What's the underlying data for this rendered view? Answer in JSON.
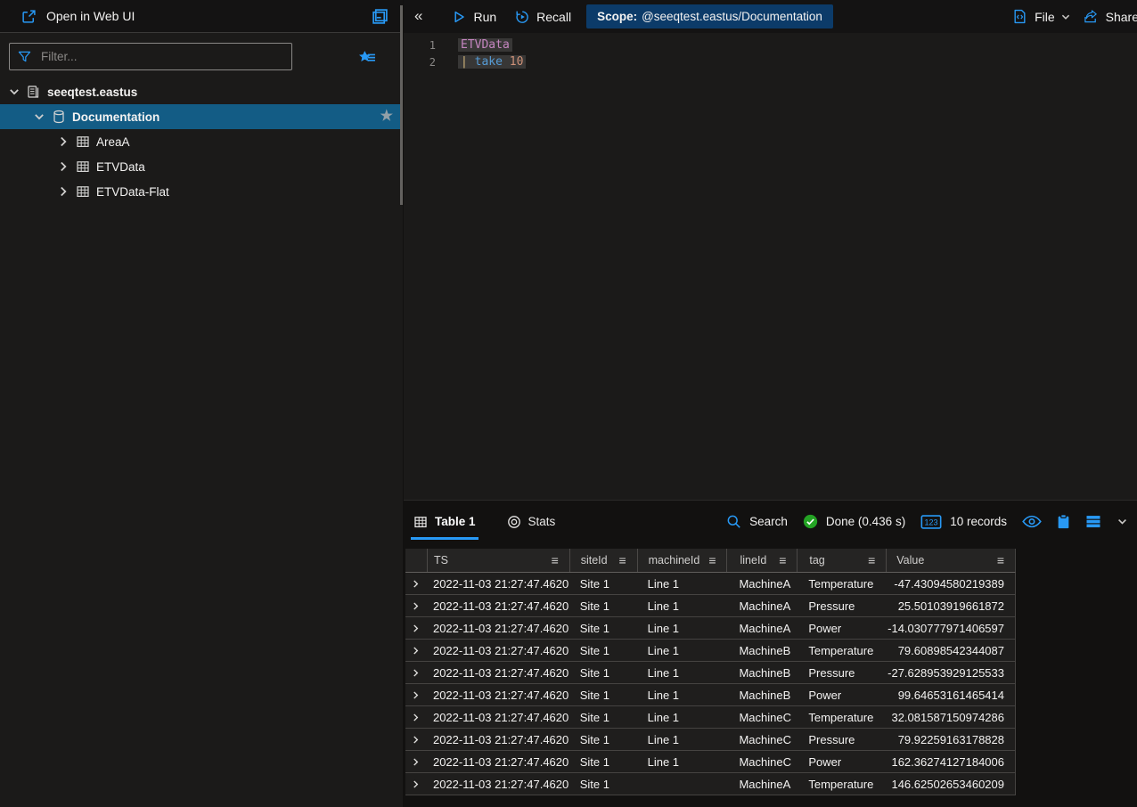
{
  "sidebar": {
    "open_in_web_ui": "Open in Web UI",
    "filter_placeholder": "Filter...",
    "cluster": "seeqtest.eastus",
    "database": "Documentation",
    "tables": [
      "AreaA",
      "ETVData",
      "ETVData-Flat"
    ]
  },
  "toolbar": {
    "collapse_icon": "«",
    "run": "Run",
    "recall": "Recall",
    "scope_label": "Scope:",
    "scope_value": "@seeqtest.eastus/Documentation",
    "file": "File",
    "share": "Share"
  },
  "editor": {
    "line_numbers": [
      "1",
      "2"
    ],
    "line1_table": "ETVData",
    "line2_pipe": "|",
    "line2_keyword": "take",
    "line2_number": "10"
  },
  "results": {
    "tab_table": "Table 1",
    "tab_stats": "Stats",
    "search_label": "Search",
    "status_label": "Done (0.436 s)",
    "records_label": "10 records",
    "records_icon_text": "123"
  },
  "icons": {
    "star": "★",
    "column_menu": "≡"
  },
  "colors": {
    "accent_blue": "#2899f5",
    "selected_row_blue": "#135c85",
    "scope_chip_blue": "#0c3b69",
    "status_green": "#24a324",
    "token_table": "#c586c0",
    "token_keyword": "#569cd6",
    "token_number": "#ce9178"
  },
  "table": {
    "columns": [
      "TS",
      "siteId",
      "machineId",
      "lineId",
      "tag",
      "Value"
    ],
    "rows": [
      [
        "2022-11-03 21:27:47.4620",
        "Site 1",
        "Line 1",
        "MachineA",
        "Temperature",
        "-47.43094580219389"
      ],
      [
        "2022-11-03 21:27:47.4620",
        "Site 1",
        "Line 1",
        "MachineA",
        "Pressure",
        "25.50103919661872"
      ],
      [
        "2022-11-03 21:27:47.4620",
        "Site 1",
        "Line 1",
        "MachineA",
        "Power",
        "-14.030777971406597"
      ],
      [
        "2022-11-03 21:27:47.4620",
        "Site 1",
        "Line 1",
        "MachineB",
        "Temperature",
        "79.60898542344087"
      ],
      [
        "2022-11-03 21:27:47.4620",
        "Site 1",
        "Line 1",
        "MachineB",
        "Pressure",
        "-27.628953929125533"
      ],
      [
        "2022-11-03 21:27:47.4620",
        "Site 1",
        "Line 1",
        "MachineB",
        "Power",
        "99.64653161465414"
      ],
      [
        "2022-11-03 21:27:47.4620",
        "Site 1",
        "Line 1",
        "MachineC",
        "Temperature",
        "32.081587150974286"
      ],
      [
        "2022-11-03 21:27:47.4620",
        "Site 1",
        "Line 1",
        "MachineC",
        "Pressure",
        "79.92259163178828"
      ],
      [
        "2022-11-03 21:27:47.4620",
        "Site 1",
        "Line 1",
        "MachineC",
        "Power",
        "162.36274127184006"
      ],
      [
        "2022-11-03 21:27:47.4620",
        "Site 1",
        "",
        "MachineA",
        "Temperature",
        "146.62502653460209"
      ]
    ]
  }
}
